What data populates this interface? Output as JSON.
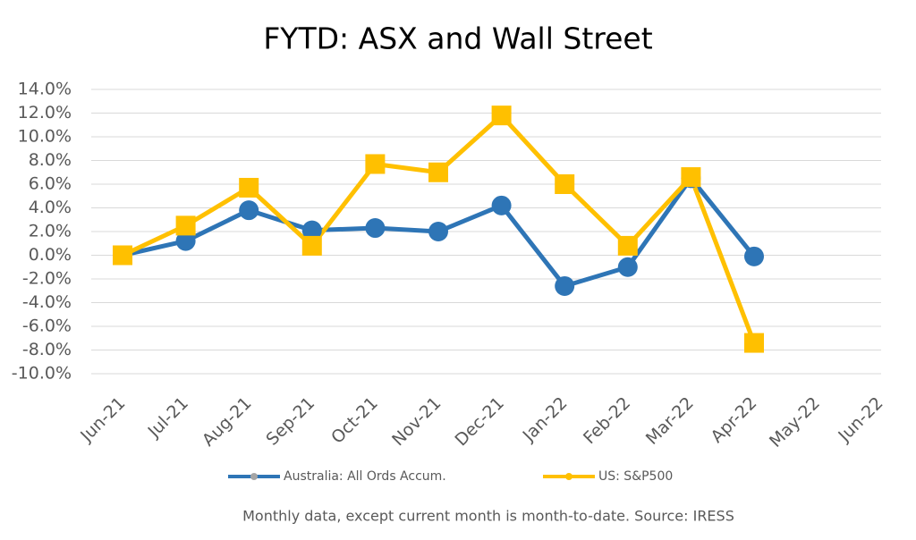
{
  "chart_data": {
    "type": "line",
    "title": "FYTD: ASX and Wall Street",
    "categories": [
      "Jun-21",
      "Jul-21",
      "Aug-21",
      "Sep-21",
      "Oct-21",
      "Nov-21",
      "Dec-21",
      "Jan-22",
      "Feb-22",
      "Mar-22",
      "Apr-22",
      "May-22",
      "Jun-22"
    ],
    "series": [
      {
        "name": "Australia: All Ords Accum.",
        "color": "#2e75b6",
        "marker": "circle",
        "values": [
          0,
          1.2,
          3.8,
          2.1,
          2.3,
          2.0,
          4.2,
          -2.6,
          -1.0,
          6.5,
          -0.1,
          null,
          null
        ]
      },
      {
        "name": "US: S&P500",
        "color": "#ffc000",
        "marker": "square",
        "values": [
          0,
          2.5,
          5.7,
          0.8,
          7.7,
          7.0,
          11.8,
          6.0,
          0.8,
          6.6,
          -7.4,
          null,
          null
        ]
      }
    ],
    "ylim": [
      -10,
      14
    ],
    "yticks": [
      {
        "value": -10,
        "label": "-10.0%"
      },
      {
        "value": -8,
        "label": "-8.0%"
      },
      {
        "value": -6,
        "label": "-6.0%"
      },
      {
        "value": -4,
        "label": "-4.0%"
      },
      {
        "value": -2,
        "label": "-2.0%"
      },
      {
        "value": 0,
        "label": "0.0%"
      },
      {
        "value": 2,
        "label": "2.0%"
      },
      {
        "value": 4,
        "label": "4.0%"
      },
      {
        "value": 6,
        "label": "6.0%"
      },
      {
        "value": 8,
        "label": "8.0%"
      },
      {
        "value": 10,
        "label": "10.0%"
      },
      {
        "value": 12,
        "label": "12.0%"
      },
      {
        "value": 14,
        "label": "14.0%"
      }
    ],
    "grid": true,
    "legend": "bottom",
    "note": "Monthly data, except current month is month-to-date.  Source: IRESS"
  }
}
